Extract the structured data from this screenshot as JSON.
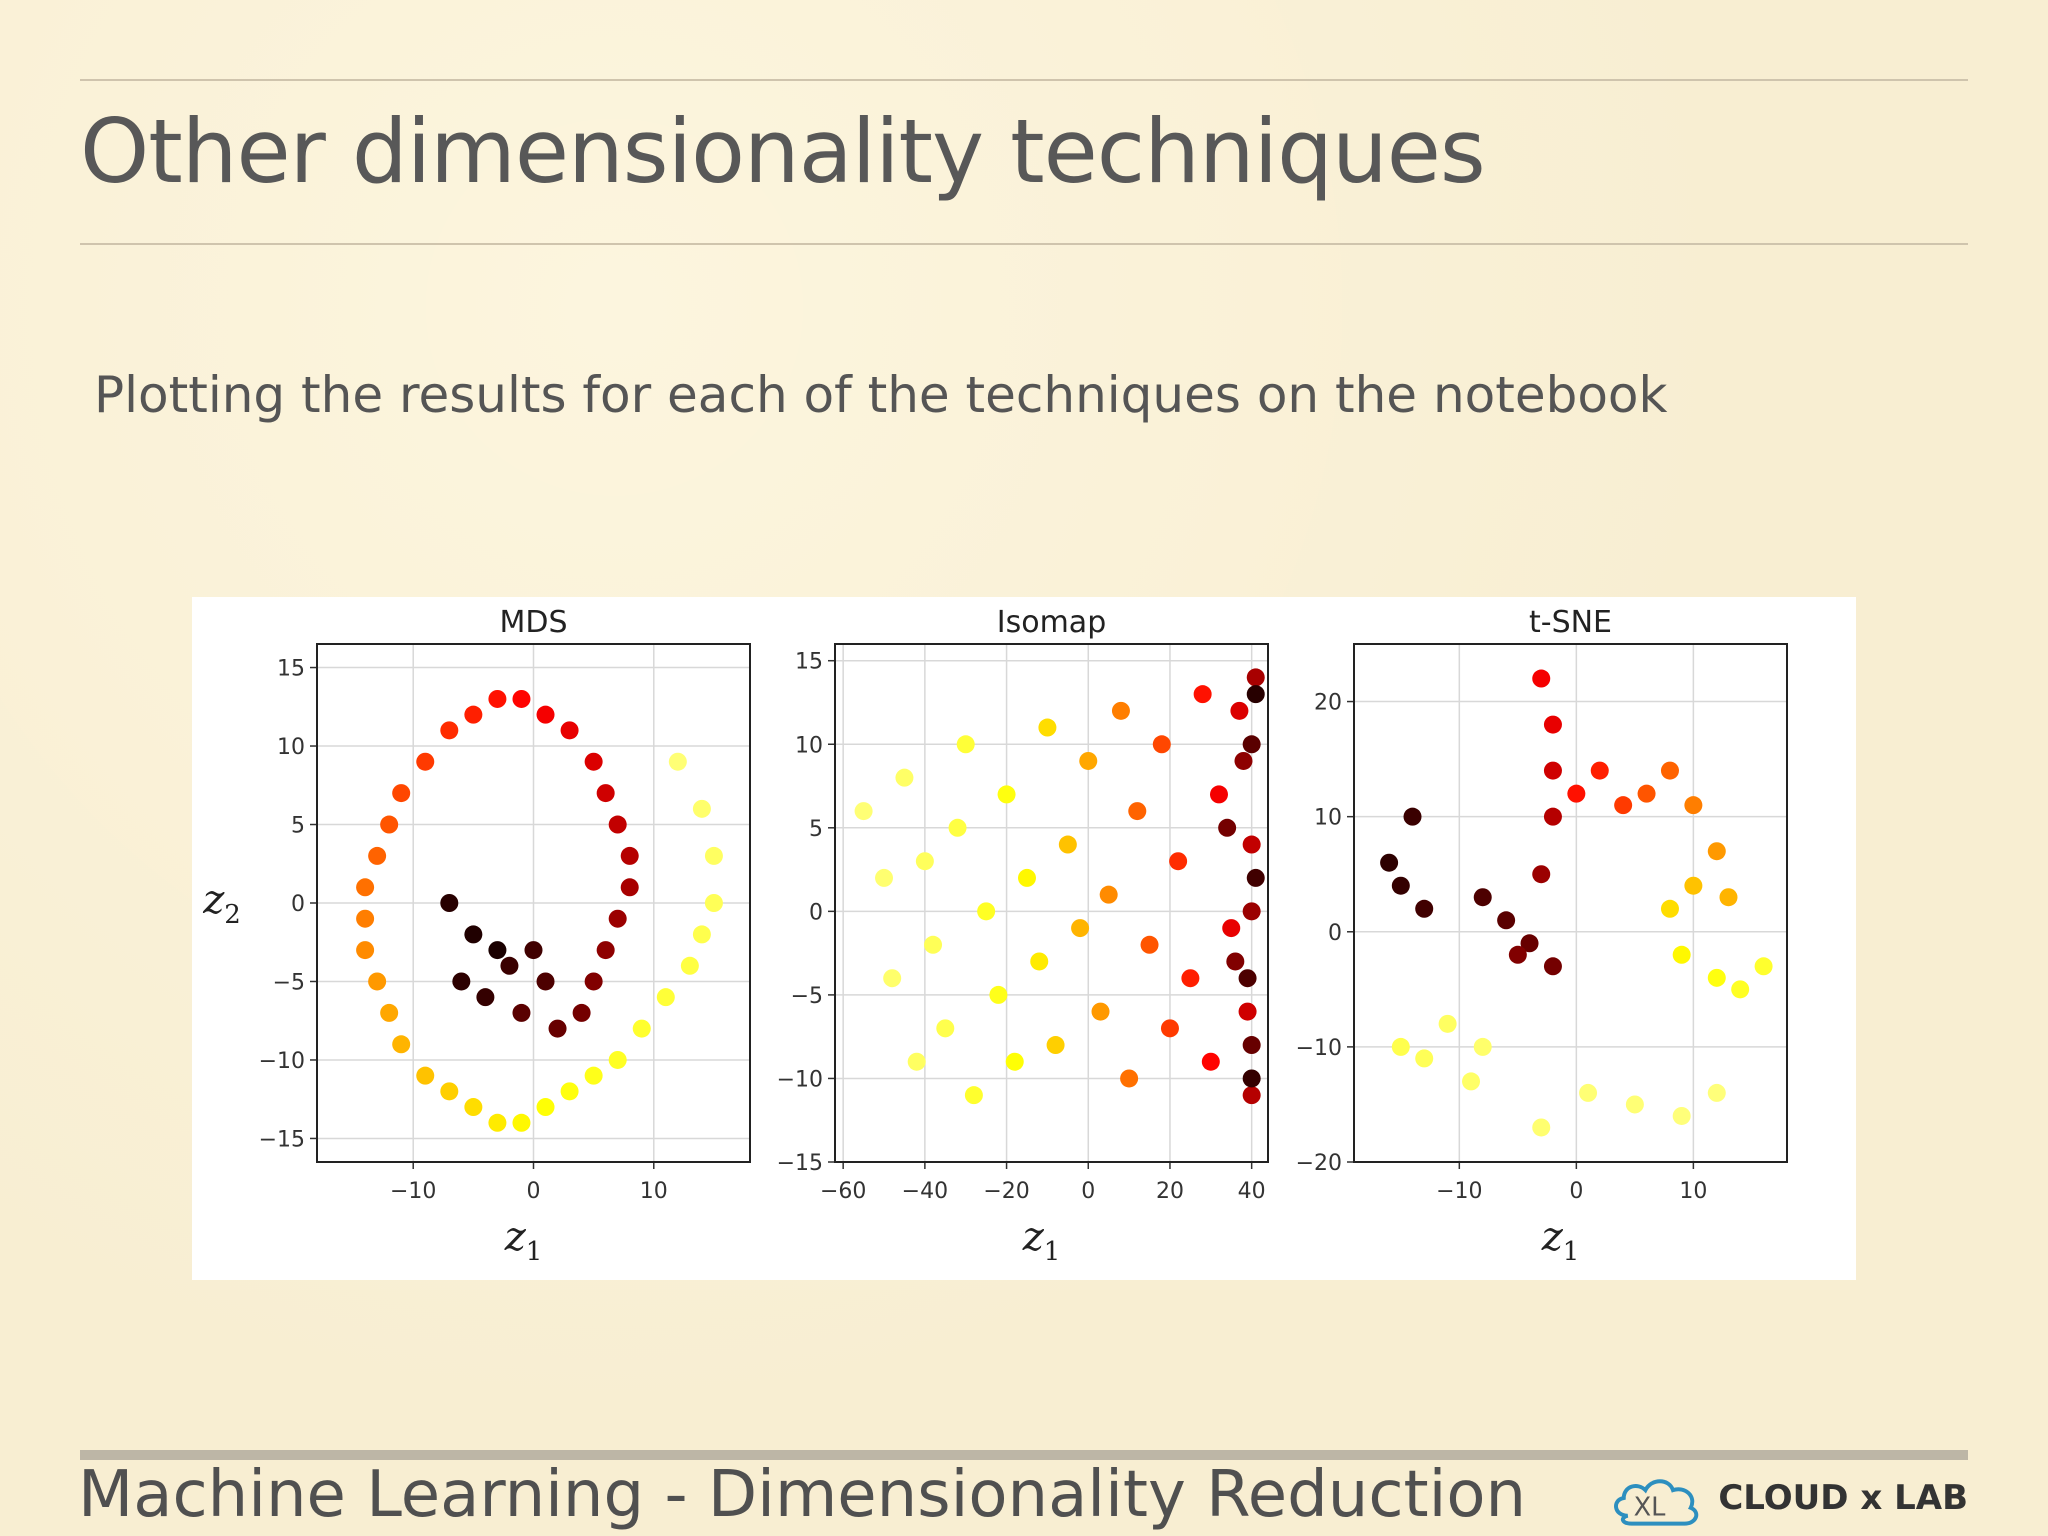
{
  "slide": {
    "title": "Other dimensionality techniques",
    "subtitle": "Plotting the results for each of the techniques on the notebook",
    "footer": "Machine Learning - Dimensionality Reduction",
    "brand": "CLOUD x LAB"
  },
  "colors": {
    "background": "#f8eed2",
    "rule": "#cfc4ad",
    "colormap": "hot"
  },
  "chart_data": [
    {
      "type": "scatter",
      "title": "MDS",
      "xlabel": "z1",
      "ylabel": "z2",
      "xlim": [
        -18,
        18
      ],
      "ylim": [
        -16.5,
        16.5
      ],
      "xticks": [
        -10,
        0,
        10
      ],
      "yticks": [
        -15,
        -10,
        -5,
        0,
        5,
        10,
        15
      ],
      "grid": true,
      "description_shape": "swiss roll spiral",
      "points": [
        [
          -3,
          -3,
          0.02
        ],
        [
          -5,
          -2,
          0.03
        ],
        [
          -7,
          0,
          0.04
        ],
        [
          -6,
          -5,
          0.05
        ],
        [
          -4,
          -6,
          0.06
        ],
        [
          -2,
          -4,
          0.07
        ],
        [
          0,
          -3,
          0.08
        ],
        [
          1,
          -5,
          0.1
        ],
        [
          -1,
          -7,
          0.12
        ],
        [
          2,
          -8,
          0.14
        ],
        [
          4,
          -7,
          0.16
        ],
        [
          5,
          -5,
          0.18
        ],
        [
          6,
          -3,
          0.2
        ],
        [
          7,
          -1,
          0.22
        ],
        [
          8,
          1,
          0.24
        ],
        [
          8,
          3,
          0.26
        ],
        [
          7,
          5,
          0.28
        ],
        [
          6,
          7,
          0.3
        ],
        [
          5,
          9,
          0.32
        ],
        [
          3,
          11,
          0.34
        ],
        [
          1,
          12,
          0.36
        ],
        [
          -1,
          13,
          0.38
        ],
        [
          -3,
          13,
          0.4
        ],
        [
          -5,
          12,
          0.42
        ],
        [
          -7,
          11,
          0.44
        ],
        [
          -9,
          9,
          0.46
        ],
        [
          -11,
          7,
          0.48
        ],
        [
          -12,
          5,
          0.5
        ],
        [
          -13,
          3,
          0.52
        ],
        [
          -14,
          1,
          0.54
        ],
        [
          -14,
          -1,
          0.56
        ],
        [
          -14,
          -3,
          0.58
        ],
        [
          -13,
          -5,
          0.6
        ],
        [
          -12,
          -7,
          0.62
        ],
        [
          -11,
          -9,
          0.64
        ],
        [
          -9,
          -11,
          0.66
        ],
        [
          -7,
          -12,
          0.68
        ],
        [
          -5,
          -13,
          0.7
        ],
        [
          -3,
          -14,
          0.72
        ],
        [
          -1,
          -14,
          0.74
        ],
        [
          1,
          -13,
          0.76
        ],
        [
          3,
          -12,
          0.78
        ],
        [
          5,
          -11,
          0.8
        ],
        [
          7,
          -10,
          0.82
        ],
        [
          9,
          -8,
          0.84
        ],
        [
          11,
          -6,
          0.86
        ],
        [
          13,
          -4,
          0.88
        ],
        [
          14,
          -2,
          0.9
        ],
        [
          15,
          0,
          0.92
        ],
        [
          15,
          3,
          0.94
        ],
        [
          14,
          6,
          0.96
        ],
        [
          12,
          9,
          0.98
        ]
      ]
    },
    {
      "type": "scatter",
      "title": "Isomap",
      "xlabel": "z1",
      "ylabel": "",
      "xlim": [
        -62,
        44
      ],
      "ylim": [
        -15,
        16
      ],
      "xticks": [
        -60,
        -40,
        -20,
        0,
        20,
        40
      ],
      "yticks": [
        -15,
        -10,
        -5,
        0,
        5,
        10,
        15
      ],
      "grid": true,
      "description_shape": "unrolled band, color gradient left (light) to right (dark)",
      "points": [
        [
          -55,
          6,
          0.98
        ],
        [
          -50,
          2,
          0.97
        ],
        [
          -48,
          -4,
          0.96
        ],
        [
          -45,
          8,
          0.95
        ],
        [
          -42,
          -9,
          0.94
        ],
        [
          -40,
          3,
          0.93
        ],
        [
          -38,
          -2,
          0.92
        ],
        [
          -35,
          -7,
          0.9
        ],
        [
          -32,
          5,
          0.88
        ],
        [
          -30,
          10,
          0.86
        ],
        [
          -28,
          -11,
          0.84
        ],
        [
          -25,
          0,
          0.82
        ],
        [
          -22,
          -5,
          0.8
        ],
        [
          -20,
          7,
          0.78
        ],
        [
          -18,
          -9,
          0.76
        ],
        [
          -15,
          2,
          0.74
        ],
        [
          -12,
          -3,
          0.72
        ],
        [
          -10,
          11,
          0.7
        ],
        [
          -8,
          -8,
          0.68
        ],
        [
          -5,
          4,
          0.66
        ],
        [
          -2,
          -1,
          0.64
        ],
        [
          0,
          9,
          0.62
        ],
        [
          3,
          -6,
          0.6
        ],
        [
          5,
          1,
          0.58
        ],
        [
          8,
          12,
          0.56
        ],
        [
          10,
          -10,
          0.54
        ],
        [
          12,
          6,
          0.52
        ],
        [
          15,
          -2,
          0.5
        ],
        [
          18,
          10,
          0.48
        ],
        [
          20,
          -7,
          0.46
        ],
        [
          22,
          3,
          0.44
        ],
        [
          25,
          -4,
          0.42
        ],
        [
          28,
          13,
          0.4
        ],
        [
          30,
          -9,
          0.38
        ],
        [
          32,
          7,
          0.36
        ],
        [
          35,
          -1,
          0.34
        ],
        [
          37,
          12,
          0.32
        ],
        [
          39,
          -6,
          0.3
        ],
        [
          40,
          4,
          0.28
        ],
        [
          40,
          -11,
          0.26
        ],
        [
          41,
          14,
          0.24
        ],
        [
          40,
          0,
          0.22
        ],
        [
          38,
          9,
          0.2
        ],
        [
          36,
          -3,
          0.18
        ],
        [
          34,
          5,
          0.16
        ],
        [
          40,
          -8,
          0.14
        ],
        [
          40,
          10,
          0.12
        ],
        [
          39,
          -4,
          0.1
        ],
        [
          41,
          2,
          0.08
        ],
        [
          40,
          -10,
          0.06
        ],
        [
          41,
          13,
          0.04
        ]
      ]
    },
    {
      "type": "scatter",
      "title": "t-SNE",
      "xlabel": "z1",
      "ylabel": "",
      "xlim": [
        -19,
        18
      ],
      "ylim": [
        -20,
        25
      ],
      "xticks": [
        -10,
        0,
        10
      ],
      "yticks": [
        -20,
        -10,
        0,
        10,
        20
      ],
      "grid": true,
      "description_shape": "separated clusters",
      "points": [
        [
          -16,
          6,
          0.05
        ],
        [
          -15,
          4,
          0.06
        ],
        [
          -14,
          10,
          0.07
        ],
        [
          -13,
          2,
          0.08
        ],
        [
          -8,
          3,
          0.1
        ],
        [
          -6,
          1,
          0.12
        ],
        [
          -4,
          -1,
          0.14
        ],
        [
          -2,
          -3,
          0.16
        ],
        [
          -5,
          -2,
          0.18
        ],
        [
          -3,
          5,
          0.22
        ],
        [
          -2,
          10,
          0.26
        ],
        [
          -2,
          14,
          0.3
        ],
        [
          -2,
          18,
          0.34
        ],
        [
          -3,
          22,
          0.36
        ],
        [
          0,
          12,
          0.4
        ],
        [
          2,
          14,
          0.42
        ],
        [
          4,
          11,
          0.46
        ],
        [
          6,
          12,
          0.5
        ],
        [
          8,
          14,
          0.52
        ],
        [
          10,
          11,
          0.56
        ],
        [
          12,
          7,
          0.6
        ],
        [
          13,
          3,
          0.64
        ],
        [
          10,
          4,
          0.66
        ],
        [
          8,
          2,
          0.7
        ],
        [
          9,
          -2,
          0.74
        ],
        [
          12,
          -4,
          0.78
        ],
        [
          14,
          -5,
          0.82
        ],
        [
          16,
          -3,
          0.84
        ],
        [
          -15,
          -10,
          0.9
        ],
        [
          -13,
          -11,
          0.92
        ],
        [
          -11,
          -8,
          0.94
        ],
        [
          -9,
          -13,
          0.95
        ],
        [
          -8,
          -10,
          0.96
        ],
        [
          -3,
          -17,
          0.97
        ],
        [
          1,
          -14,
          0.98
        ],
        [
          5,
          -15,
          0.98
        ],
        [
          9,
          -16,
          0.99
        ],
        [
          12,
          -14,
          0.99
        ]
      ]
    }
  ]
}
